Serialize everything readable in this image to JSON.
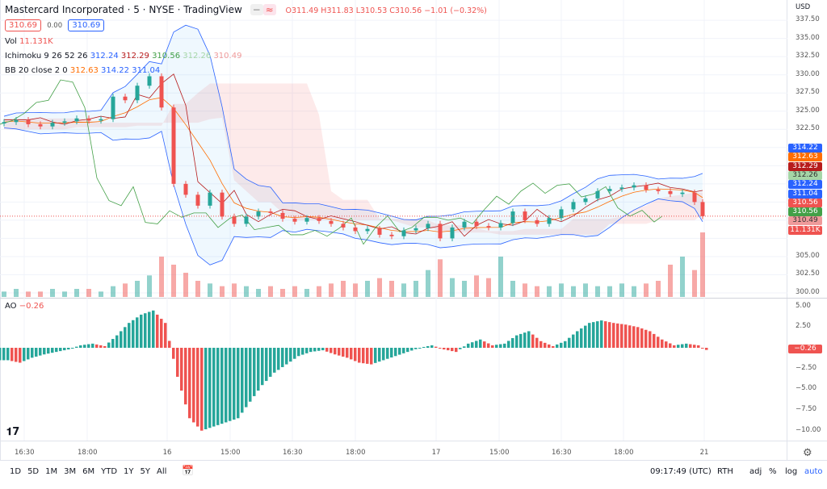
{
  "header": {
    "title": "Mastercard Incorporated · 5 · NYSE · TradingView",
    "ohlc": {
      "open": "O311.49",
      "high": "H311.83",
      "low": "L310.53",
      "close": "C310.56",
      "change": "−1.01 (−0.32%)"
    }
  },
  "trade": {
    "sell": "310.69",
    "spread": "0.00",
    "buy": "310.69"
  },
  "indicators": {
    "vol": {
      "label": "Vol",
      "value": "11.131K"
    },
    "ichimoku": {
      "label": "Ichimoku 9 26 52 26",
      "values": [
        "312.24",
        "312.29",
        "310.56",
        "312.26",
        "310.49"
      ]
    },
    "bb": {
      "label": "BB 20 close 2 0",
      "values": [
        "312.63",
        "314.22",
        "311.04"
      ]
    },
    "ao": {
      "label": "AO",
      "value": "−0.26"
    }
  },
  "price_axis": {
    "currency": "USD",
    "ticks": [
      "337.50",
      "335.00",
      "332.50",
      "330.00",
      "327.50",
      "325.00",
      "322.50",
      "305.00",
      "302.50",
      "300.00"
    ],
    "tags": [
      {
        "v": "314.22",
        "c": "#2962ff"
      },
      {
        "v": "312.63",
        "c": "#ff6d00"
      },
      {
        "v": "312.29",
        "c": "#b71c1c"
      },
      {
        "v": "312.26",
        "c": "#a5d6a7"
      },
      {
        "v": "312.24",
        "c": "#2962ff"
      },
      {
        "v": "311.04",
        "c": "#2962ff"
      },
      {
        "v": "310.56",
        "c": "#ef5350"
      },
      {
        "v": "310.56",
        "c": "#43a047"
      },
      {
        "v": "310.49",
        "c": "#ef9a9a"
      },
      {
        "v": "11.131K",
        "c": "#ef5350"
      }
    ]
  },
  "ao_axis": {
    "ticks": [
      "5.00",
      "2.50",
      "−2.50",
      "−5.00",
      "−7.50",
      "−10.00"
    ],
    "current": "−0.26"
  },
  "time_axis": [
    "16:30",
    "18:00",
    "16",
    "15:00",
    "16:30",
    "18:00",
    "17",
    "15:00",
    "16:30",
    "18:00",
    "21"
  ],
  "toolbar": {
    "ranges": [
      "1D",
      "5D",
      "1M",
      "3M",
      "6M",
      "YTD",
      "1Y",
      "5Y",
      "All"
    ],
    "clock": "09:17:49 (UTC)",
    "session": "RTH",
    "adj": "adj",
    "percent": "%",
    "log": "log",
    "auto": "auto"
  },
  "colors": {
    "up": "#26a69a",
    "down": "#ef5350",
    "bb": "#2962ff",
    "basis": "#ff6d00",
    "accent": "#2962ff"
  },
  "chart_data": {
    "type": "candlestick",
    "closes": [
      323.5,
      323.8,
      323.2,
      322.9,
      323.4,
      323.6,
      324.0,
      323.7,
      323.9,
      327.0,
      326.5,
      328.5,
      329.8,
      325.5,
      315.0,
      313.5,
      312.0,
      313.8,
      310.5,
      309.5,
      310.5,
      311.2,
      311.0,
      310.2,
      309.8,
      310.3,
      309.9,
      309.5,
      309.0,
      308.5,
      308.8,
      308.0,
      307.8,
      308.6,
      308.9,
      309.5,
      307.5,
      309.0,
      309.8,
      309.2,
      309.0,
      309.6,
      311.2,
      310.0,
      309.5,
      310.3,
      311.5,
      312.5,
      313.0,
      314.0,
      314.3,
      314.5,
      314.8,
      314.2,
      314.0,
      313.6,
      313.8,
      312.5,
      310.56
    ],
    "volume_relative": [
      2,
      3,
      2,
      2,
      3,
      2,
      3,
      3,
      2,
      4,
      5,
      6,
      8,
      15,
      12,
      9,
      6,
      5,
      4,
      5,
      4,
      3,
      4,
      3,
      4,
      3,
      4,
      5,
      6,
      5,
      6,
      7,
      6,
      5,
      6,
      10,
      14,
      7,
      6,
      8,
      7,
      15,
      6,
      5,
      4,
      4,
      5,
      4,
      5,
      4,
      4,
      5,
      4,
      5,
      6,
      12,
      15,
      10,
      24
    ],
    "ao": [
      -1.5,
      -1.8,
      -1.2,
      -0.8,
      -0.5,
      -0.2,
      0.3,
      0.5,
      0.2,
      1.5,
      3.0,
      4.0,
      4.5,
      3.0,
      -3.5,
      -8.5,
      -10.0,
      -9.5,
      -9.0,
      -8.5,
      -6.5,
      -4.5,
      -3.0,
      -2.0,
      -1.0,
      -0.5,
      -0.3,
      -0.8,
      -1.2,
      -1.8,
      -2.0,
      -1.5,
      -1.0,
      -0.5,
      0.0,
      0.3,
      -0.2,
      -0.5,
      0.5,
      1.0,
      0.3,
      0.5,
      1.5,
      2.0,
      0.8,
      0.2,
      0.8,
      2.0,
      3.0,
      3.3,
      3.0,
      2.8,
      2.5,
      2.0,
      1.0,
      0.3,
      0.5,
      0.3,
      -0.26
    ],
    "price_range": [
      300,
      337.5
    ],
    "ao_range": [
      -10,
      5
    ]
  }
}
